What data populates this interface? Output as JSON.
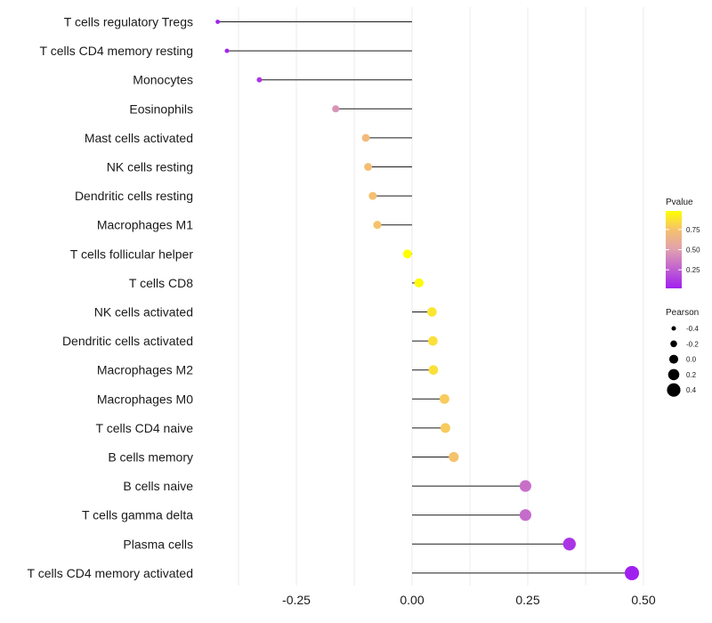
{
  "chart_data": {
    "type": "lollipop",
    "title": "",
    "xlabel": "",
    "ylabel": "",
    "xlim": [
      -0.5,
      0.52
    ],
    "x_ticks": [
      -0.25,
      0.0,
      0.25,
      0.5
    ],
    "x_tick_labels": [
      "-0.25",
      "0.00",
      "0.25",
      "0.50"
    ],
    "grid": true,
    "categories": [
      "T cells regulatory  Tregs",
      "T cells CD4 memory resting",
      "Monocytes",
      "Eosinophils",
      "Mast cells activated",
      "NK cells resting",
      "Dendritic cells resting",
      "Macrophages M1",
      "T cells follicular helper",
      "T cells CD8",
      "NK cells activated",
      "Dendritic cells activated",
      "Macrophages M2",
      "Macrophages M0",
      "T cells CD4 naive",
      "B cells memory",
      "B cells naive",
      "T cells gamma delta",
      "Plasma cells",
      "T cells CD4 memory activated"
    ],
    "values": [
      -0.42,
      -0.4,
      -0.33,
      -0.165,
      -0.1,
      -0.095,
      -0.085,
      -0.075,
      -0.01,
      0.015,
      0.043,
      0.045,
      0.046,
      0.07,
      0.072,
      0.09,
      0.245,
      0.245,
      0.34,
      0.475
    ],
    "pvalues": [
      0.02,
      0.04,
      0.1,
      0.45,
      0.7,
      0.72,
      0.74,
      0.75,
      0.98,
      0.96,
      0.88,
      0.86,
      0.86,
      0.78,
      0.78,
      0.75,
      0.32,
      0.3,
      0.1,
      0.02
    ],
    "legend_color": {
      "title": "Pvalue",
      "ticks": [
        0.25,
        0.5,
        0.75
      ],
      "tick_labels": [
        "0.25",
        "0.50",
        "0.75"
      ],
      "range": [
        0.02,
        0.98
      ],
      "low_color": "#a020f0",
      "mid_color": "#e8a0b0",
      "high_color": "#ffff00"
    },
    "legend_size": {
      "title": "Pearson",
      "values": [
        -0.4,
        -0.2,
        0.0,
        0.2,
        0.4
      ],
      "labels": [
        "-0.4",
        "-0.2",
        "0.0",
        "0.2",
        "0.4"
      ]
    },
    "legend_position": "right"
  }
}
